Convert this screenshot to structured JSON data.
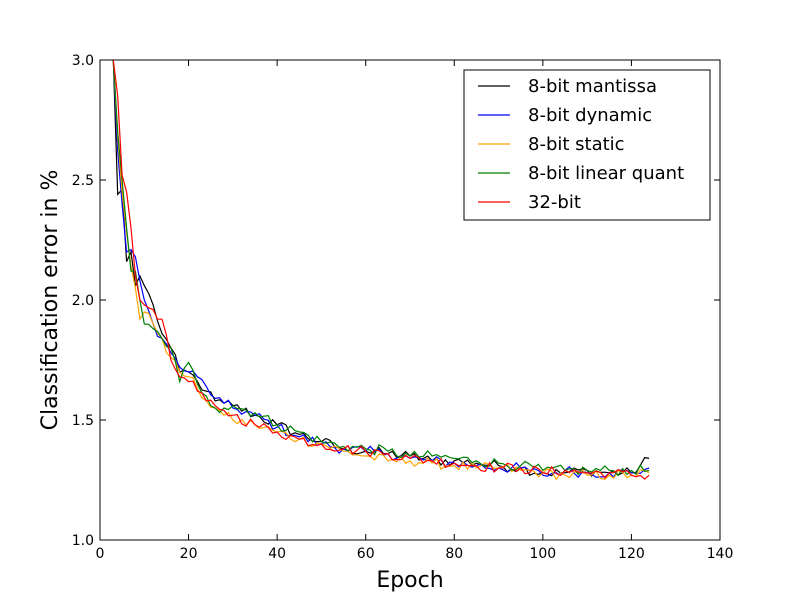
{
  "chart_data": {
    "type": "line",
    "title": "",
    "xlabel": "Epoch",
    "ylabel": "Classification error in %",
    "xlim": [
      0,
      140
    ],
    "ylim": [
      1.0,
      3.0
    ],
    "xticks": [
      "0",
      "20",
      "40",
      "60",
      "80",
      "100",
      "120",
      "140"
    ],
    "yticks": [
      "1.0",
      "1.5",
      "2.0",
      "2.5",
      "3.0"
    ],
    "grid": false,
    "legend_position": "top-right",
    "x": [
      3,
      4,
      5,
      6,
      7,
      8,
      9,
      10,
      12,
      14,
      16,
      18,
      20,
      22,
      24,
      26,
      28,
      30,
      35,
      40,
      45,
      50,
      55,
      60,
      65,
      70,
      75,
      80,
      85,
      90,
      95,
      100,
      105,
      110,
      115,
      120,
      124
    ],
    "series": [
      {
        "name": "8-bit mantissa",
        "color": "#000000",
        "values": [
          3.0,
          2.44,
          2.46,
          2.16,
          2.2,
          2.06,
          2.1,
          2.06,
          1.98,
          1.86,
          1.8,
          1.7,
          1.7,
          1.66,
          1.62,
          1.58,
          1.57,
          1.56,
          1.52,
          1.48,
          1.44,
          1.41,
          1.38,
          1.37,
          1.36,
          1.35,
          1.33,
          1.33,
          1.32,
          1.31,
          1.3,
          1.28,
          1.28,
          1.29,
          1.28,
          1.28,
          1.34
        ]
      },
      {
        "name": "8-bit dynamic",
        "color": "#0000ff",
        "values": [
          3.0,
          2.62,
          2.4,
          2.2,
          2.21,
          2.18,
          2.08,
          2.0,
          1.9,
          1.84,
          1.78,
          1.72,
          1.7,
          1.68,
          1.64,
          1.59,
          1.57,
          1.55,
          1.52,
          1.47,
          1.43,
          1.4,
          1.38,
          1.37,
          1.36,
          1.34,
          1.33,
          1.32,
          1.31,
          1.3,
          1.3,
          1.27,
          1.29,
          1.28,
          1.28,
          1.28,
          1.3
        ]
      },
      {
        "name": "8-bit static",
        "color": "#ffa500",
        "values": [
          3.0,
          2.68,
          2.45,
          2.28,
          2.14,
          2.05,
          1.92,
          1.95,
          1.9,
          1.84,
          1.76,
          1.7,
          1.68,
          1.63,
          1.58,
          1.55,
          1.52,
          1.5,
          1.48,
          1.45,
          1.42,
          1.4,
          1.37,
          1.35,
          1.33,
          1.33,
          1.32,
          1.31,
          1.3,
          1.3,
          1.29,
          1.28,
          1.27,
          1.27,
          1.27,
          1.27,
          1.28
        ]
      },
      {
        "name": "8-bit linear quant",
        "color": "#008000",
        "values": [
          3.0,
          2.7,
          2.5,
          2.3,
          2.12,
          2.12,
          2.0,
          1.9,
          1.88,
          1.84,
          1.8,
          1.66,
          1.74,
          1.65,
          1.6,
          1.55,
          1.55,
          1.56,
          1.53,
          1.48,
          1.45,
          1.41,
          1.39,
          1.38,
          1.37,
          1.35,
          1.35,
          1.34,
          1.33,
          1.32,
          1.31,
          1.29,
          1.29,
          1.29,
          1.29,
          1.29,
          1.29
        ]
      },
      {
        "name": "32-bit",
        "color": "#ff0000",
        "values": [
          3.0,
          2.85,
          2.52,
          2.45,
          2.3,
          2.1,
          2.0,
          1.98,
          1.96,
          1.92,
          1.75,
          1.68,
          1.66,
          1.62,
          1.58,
          1.56,
          1.54,
          1.52,
          1.48,
          1.45,
          1.42,
          1.4,
          1.38,
          1.37,
          1.36,
          1.34,
          1.33,
          1.32,
          1.31,
          1.3,
          1.3,
          1.28,
          1.29,
          1.28,
          1.28,
          1.27,
          1.27
        ]
      }
    ]
  }
}
